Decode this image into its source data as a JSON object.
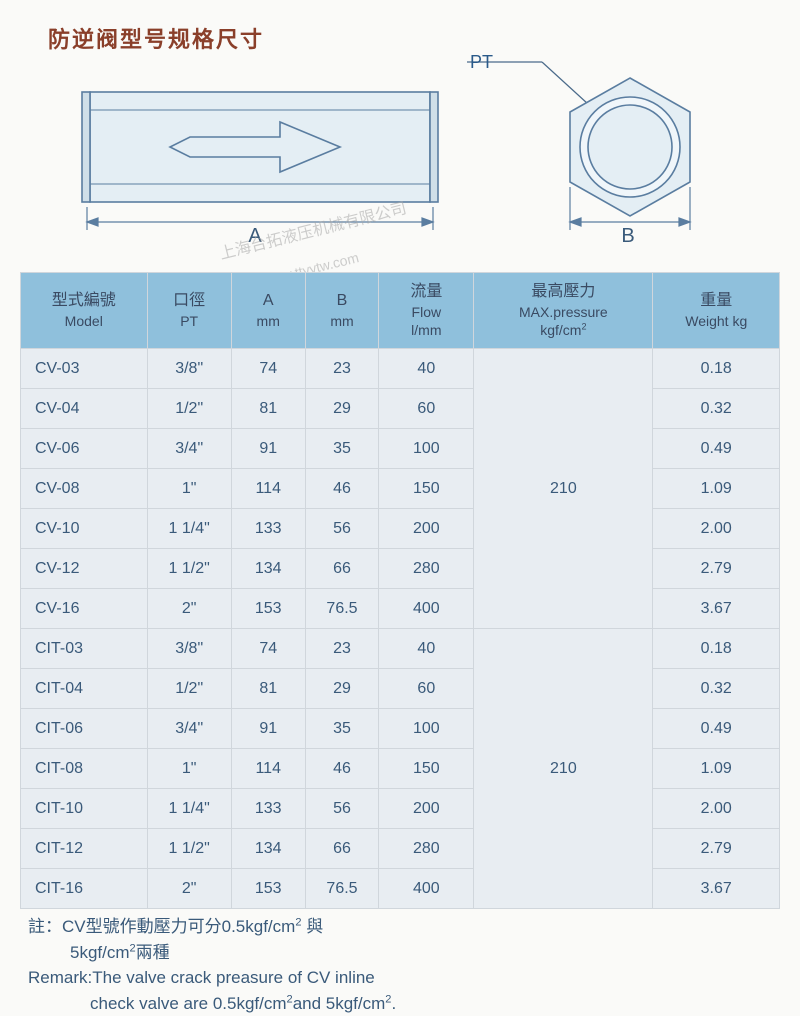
{
  "title": "防逆阀型号规格尺寸",
  "diagram": {
    "pt_label": "PT",
    "dim_a_label": "A",
    "dim_b_label": "B",
    "body_stroke": "#5a7da0",
    "body_fill": "#e4eef4",
    "line_width": 1.5
  },
  "watermark": {
    "line1": "上海台拓液压机械有限公司",
    "line2": "http://www.ttyytw.com"
  },
  "table": {
    "header_bg": "#8fc0dc",
    "row_bg": "#e8edf2",
    "border_color": "#d0d6dc",
    "text_color": "#3a5a7a",
    "columns": [
      {
        "cn": "型式編號",
        "en": "Model",
        "width": 120
      },
      {
        "cn": "口徑",
        "en": "PT",
        "width": 80
      },
      {
        "cn": "A",
        "en": "mm",
        "width": 70
      },
      {
        "cn": "B",
        "en": "mm",
        "width": 70
      },
      {
        "cn": "流量",
        "en": "Flow\nl/mm",
        "width": 90
      },
      {
        "cn": "最高壓力",
        "en": "MAX.pressure\nkgf/cm²",
        "width": 170
      },
      {
        "cn": "重量",
        "en": "Weight kg",
        "width": 120
      }
    ],
    "groups": [
      {
        "pressure": "210",
        "rows": [
          {
            "model": "CV-03",
            "pt": "3/8\"",
            "a": "74",
            "b": "23",
            "flow": "40",
            "weight": "0.18"
          },
          {
            "model": "CV-04",
            "pt": "1/2\"",
            "a": "81",
            "b": "29",
            "flow": "60",
            "weight": "0.32"
          },
          {
            "model": "CV-06",
            "pt": "3/4\"",
            "a": "91",
            "b": "35",
            "flow": "100",
            "weight": "0.49"
          },
          {
            "model": "CV-08",
            "pt": "1\"",
            "a": "114",
            "b": "46",
            "flow": "150",
            "weight": "1.09"
          },
          {
            "model": "CV-10",
            "pt": "1 1/4\"",
            "a": "133",
            "b": "56",
            "flow": "200",
            "weight": "2.00"
          },
          {
            "model": "CV-12",
            "pt": "1 1/2\"",
            "a": "134",
            "b": "66",
            "flow": "280",
            "weight": "2.79"
          },
          {
            "model": "CV-16",
            "pt": "2\"",
            "a": "153",
            "b": "76.5",
            "flow": "400",
            "weight": "3.67"
          }
        ]
      },
      {
        "pressure": "210",
        "rows": [
          {
            "model": "CIT-03",
            "pt": "3/8\"",
            "a": "74",
            "b": "23",
            "flow": "40",
            "weight": "0.18"
          },
          {
            "model": "CIT-04",
            "pt": "1/2\"",
            "a": "81",
            "b": "29",
            "flow": "60",
            "weight": "0.32"
          },
          {
            "model": "CIT-06",
            "pt": "3/4\"",
            "a": "91",
            "b": "35",
            "flow": "100",
            "weight": "0.49"
          },
          {
            "model": "CIT-08",
            "pt": "1\"",
            "a": "114",
            "b": "46",
            "flow": "150",
            "weight": "1.09"
          },
          {
            "model": "CIT-10",
            "pt": "1 1/4\"",
            "a": "133",
            "b": "56",
            "flow": "200",
            "weight": "2.00"
          },
          {
            "model": "CIT-12",
            "pt": "1 1/2\"",
            "a": "134",
            "b": "66",
            "flow": "280",
            "weight": "2.79"
          },
          {
            "model": "CIT-16",
            "pt": "2\"",
            "a": "153",
            "b": "76.5",
            "flow": "400",
            "weight": "3.67"
          }
        ]
      }
    ]
  },
  "remarks": {
    "cn_line1": "註：CV型號作動壓力可分0.5kgf/cm² 與",
    "cn_line2": "5kgf/cm²兩種",
    "en_line1": "Remark:The valve crack preasure of CV inline",
    "en_line2": "check valve are 0.5kgf/cm²and 5kgf/cm²."
  }
}
